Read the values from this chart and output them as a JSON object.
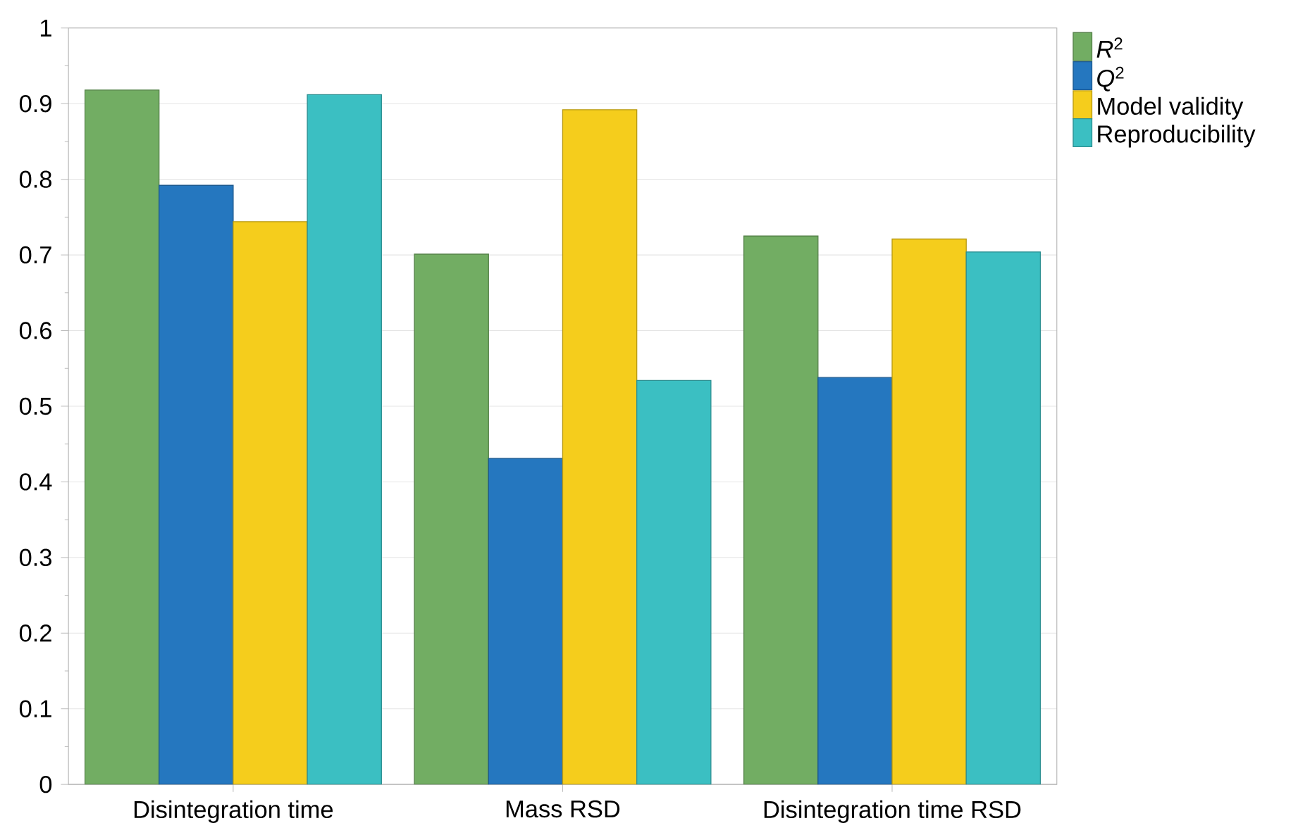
{
  "chart_data": {
    "type": "bar",
    "categories": [
      "Disintegration time",
      "Mass RSD",
      "Disintegration time RSD"
    ],
    "series": [
      {
        "name": "*R*$^{2}$",
        "color": "#72ad63",
        "values": [
          0.918,
          0.701,
          0.725
        ]
      },
      {
        "name": "*Q*$^{2}$",
        "color": "#2577bf",
        "values": [
          0.792,
          0.431,
          0.538
        ]
      },
      {
        "name": "Model validity",
        "color": "#f5cd1c",
        "values": [
          0.744,
          0.892,
          0.721
        ]
      },
      {
        "name": "Reproducibility",
        "color": "#3bbfc2",
        "values": [
          0.912,
          0.534,
          0.704
        ]
      }
    ],
    "ylim": [
      0,
      1
    ],
    "yticks": [
      0,
      0.1,
      0.2,
      0.3,
      0.4,
      0.5,
      0.6,
      0.7,
      0.8,
      0.9,
      1
    ],
    "grid": "y",
    "legend": "top right"
  }
}
